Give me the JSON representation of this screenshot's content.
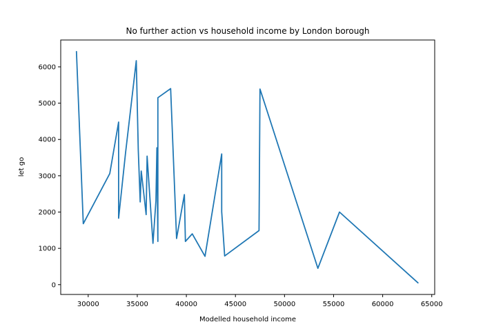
{
  "chart_data": {
    "type": "line",
    "title": "No further action vs household income by London borough",
    "xlabel": "Modelled household income",
    "ylabel": "let go",
    "xlim": [
      27200,
      65300
    ],
    "ylim": [
      -270,
      6740
    ],
    "xticks": [
      30000,
      35000,
      40000,
      45000,
      50000,
      55000,
      60000,
      65000
    ],
    "yticks": [
      0,
      1000,
      2000,
      3000,
      4000,
      5000,
      6000
    ],
    "xtick_labels": [
      "30000",
      "35000",
      "40000",
      "45000",
      "50000",
      "55000",
      "60000",
      "65000"
    ],
    "ytick_labels": [
      "0",
      "1000",
      "2000",
      "3000",
      "4000",
      "5000",
      "6000"
    ],
    "grid": false,
    "line_color": "#1f77b4",
    "series": [
      {
        "x": [
          28800,
          29500,
          32200,
          33100,
          33100,
          33800,
          34900,
          35100,
          35300,
          35400,
          35900,
          36000,
          36600,
          36900,
          37000,
          37100,
          37100,
          38400,
          39000,
          39800,
          39900,
          40600,
          41900,
          43600,
          43600,
          43900,
          47400,
          47500,
          53400,
          55600,
          63600
        ],
        "y": [
          6420,
          1680,
          3060,
          4480,
          1830,
          3620,
          6170,
          3710,
          2280,
          3130,
          1930,
          3540,
          1140,
          2310,
          3770,
          1190,
          5150,
          5400,
          1270,
          2480,
          1190,
          1400,
          780,
          3600,
          2010,
          790,
          1490,
          5390,
          450,
          2000,
          50
        ]
      }
    ]
  }
}
